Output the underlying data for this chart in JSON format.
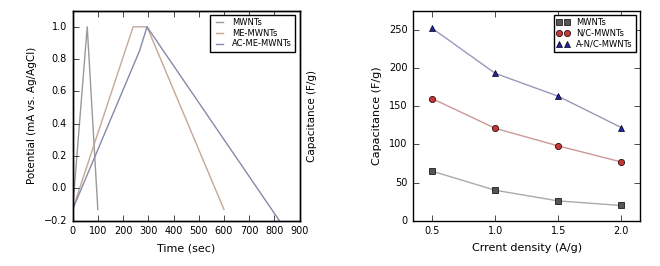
{
  "left_chart": {
    "xlabel": "Time (sec)",
    "ylabel": "Potential (mA vs. Ag/AgCl)",
    "ylabel_right": "Capacitance (F/g)",
    "xlim": [
      0,
      900
    ],
    "ylim": [
      -0.2,
      1.1
    ],
    "yticks": [
      -0.2,
      0.0,
      0.2,
      0.4,
      0.6,
      0.8,
      1.0
    ],
    "xticks": [
      0,
      100,
      200,
      300,
      400,
      500,
      600,
      700,
      800,
      900
    ],
    "series": [
      {
        "label": "MWNTs",
        "color": "#999999",
        "x": [
          0,
          58,
          100
        ],
        "y": [
          -0.13,
          1.0,
          -0.13
        ]
      },
      {
        "label": "ME-MWNTs",
        "color": "#c4a898",
        "x": [
          0,
          240,
          295,
          600
        ],
        "y": [
          -0.13,
          1.0,
          1.0,
          -0.13
        ]
      },
      {
        "label": "AC-ME-MWNTs",
        "color": "#8888aa",
        "x": [
          0,
          265,
          295,
          820
        ],
        "y": [
          -0.13,
          0.85,
          1.0,
          -0.2
        ]
      }
    ]
  },
  "right_chart": {
    "xlabel": "Crrent density (A/g)",
    "ylabel": "Capacitance (F/g)",
    "xlim": [
      0.35,
      2.15
    ],
    "ylim": [
      0,
      275
    ],
    "xticks": [
      0.5,
      1.0,
      1.5,
      2.0
    ],
    "yticks": [
      0,
      50,
      100,
      150,
      200,
      250
    ],
    "series": [
      {
        "label": "MWNTs",
        "color": "#555555",
        "line_color": "#aaaaaa",
        "marker": "s",
        "x": [
          0.5,
          1.0,
          1.5,
          2.0
        ],
        "y": [
          65,
          40,
          26,
          20
        ]
      },
      {
        "label": "N/C-MWNTs",
        "color": "#cc3333",
        "line_color": "#cc9999",
        "marker": "o",
        "x": [
          0.5,
          1.0,
          1.5,
          2.0
        ],
        "y": [
          160,
          121,
          98,
          77
        ]
      },
      {
        "label": "A-N/C-MWNTs",
        "color": "#2222aa",
        "line_color": "#9999bb",
        "marker": "^",
        "x": [
          0.5,
          1.0,
          1.5,
          2.0
        ],
        "y": [
          252,
          193,
          163,
          122
        ]
      }
    ]
  }
}
